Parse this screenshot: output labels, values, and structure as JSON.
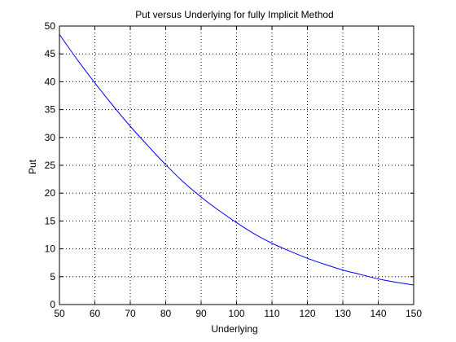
{
  "chart_data": {
    "type": "line",
    "title": "Put versus Underlying for fully Implicit Method",
    "xlabel": "Underlying",
    "ylabel": "Put",
    "xlim": [
      50,
      150
    ],
    "ylim": [
      0,
      50
    ],
    "xticks": [
      50,
      60,
      70,
      80,
      90,
      100,
      110,
      120,
      130,
      140,
      150
    ],
    "yticks": [
      0,
      5,
      10,
      15,
      20,
      25,
      30,
      35,
      40,
      45,
      50
    ],
    "grid": true,
    "grid_style": "dotted",
    "series": [
      {
        "color": "#0000ff",
        "x": [
          50,
          55,
          60,
          65,
          70,
          75,
          80,
          85,
          90,
          95,
          100,
          105,
          110,
          115,
          120,
          125,
          130,
          135,
          140,
          145,
          150
        ],
        "y": [
          48.5,
          44.0,
          39.8,
          35.8,
          32.0,
          28.5,
          25.1,
          22.0,
          19.3,
          16.9,
          14.7,
          12.7,
          11.0,
          9.6,
          8.3,
          7.2,
          6.2,
          5.4,
          4.6,
          4.0,
          3.5
        ]
      }
    ]
  }
}
